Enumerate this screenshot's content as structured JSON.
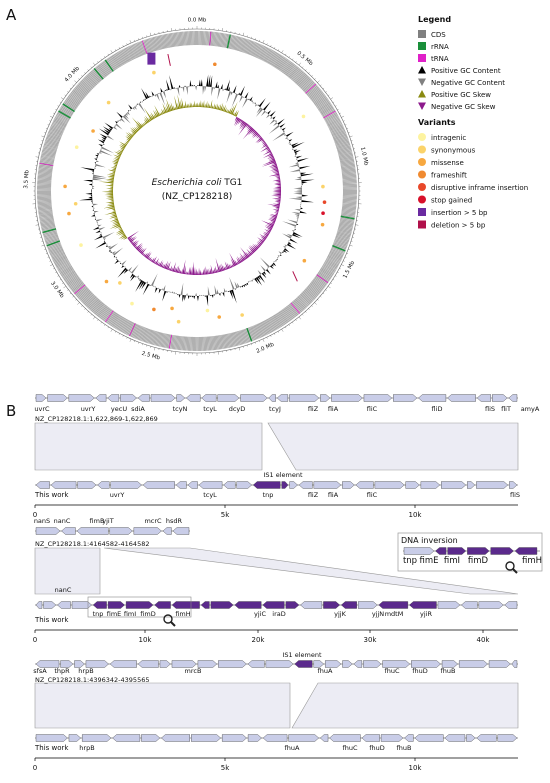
{
  "panel_a": {
    "label": "A",
    "genome_ticks": [
      "0.0 Mb",
      "0.5 Mb",
      "1.0 Mb",
      "1.5 Mb",
      "2.0 Mb",
      "2.5 Mb",
      "3.0 Mb",
      "3.5 Mb",
      "4.0 Mb"
    ],
    "center_title": {
      "species": "Escherichia coli",
      "strain": "TG1",
      "accession": "(NZ_CP128218)"
    },
    "legend": {
      "title": "Legend",
      "items": [
        {
          "label": "CDS",
          "color": "#808080"
        },
        {
          "label": "rRNA",
          "color": "#1a8f3a"
        },
        {
          "label": "tRNA",
          "color": "#e020c8"
        },
        {
          "label": "Positive GC Content",
          "color": "#000000"
        },
        {
          "label": "Negative GC Content",
          "color": "#808080"
        },
        {
          "label": "Positive GC Skew",
          "color": "#8a8a10"
        },
        {
          "label": "Negative GC Skew",
          "color": "#8c1a8c"
        }
      ]
    },
    "variants": {
      "title": "Variants",
      "items": [
        {
          "label": "intragenic",
          "color": "#fdf3a0"
        },
        {
          "label": "synonymous",
          "color": "#fbd36a"
        },
        {
          "label": "missense",
          "color": "#f7a840"
        },
        {
          "label": "frameshift",
          "color": "#f08a30"
        },
        {
          "label": "disruptive inframe insertion",
          "color": "#e8482a"
        },
        {
          "label": "stop gained",
          "color": "#d8102a"
        },
        {
          "label": "insertion > 5 bp",
          "color": "#6a2aa0"
        },
        {
          "label": "deletion > 5 bp",
          "color": "#b0104a"
        }
      ]
    }
  },
  "panel_b": {
    "label": "B",
    "tracks": [
      {
        "reference_genes": [
          "uvrC",
          "uvrY",
          "yecU",
          "sdiA",
          "tcyN",
          "tcyL",
          "dcyD",
          "tcyJ",
          "fliZ",
          "fliA",
          "fliC",
          "fliD",
          "fliS",
          "fliT",
          "amyA"
        ],
        "reference_label": "NZ_CP128218.1:1,622,869-1,622,869",
        "insert_label": "IS1 element",
        "work_genes": [
          "uvrY",
          "tcyL",
          "tnp",
          "fliZ",
          "fliA",
          "fliC",
          "fliS"
        ],
        "work_label": "This work",
        "axis_ticks": [
          "0",
          "5k",
          "10k"
        ]
      },
      {
        "reference_genes": [
          "nanS",
          "nanC",
          "fimB",
          "yjiT",
          "mcrC",
          "hsdR"
        ],
        "reference_label": "NZ_CP128218.1:4164582-4164582",
        "inset": {
          "title": "DNA inversion",
          "genes": [
            "tnp",
            "fimE",
            "fimI",
            "fimD",
            "fimH"
          ]
        },
        "work_genes": [
          "nanC",
          "tnp",
          "fimE",
          "fimI",
          "fimD",
          "fimH",
          "yjiC",
          "iraD",
          "yjjK",
          "yjjN",
          "mdtM",
          "yjiR"
        ],
        "work_label": "This work",
        "axis_ticks": [
          "0",
          "10k",
          "20k",
          "30k",
          "40k"
        ]
      },
      {
        "insert_label": "IS1 element",
        "reference_genes": [
          "sfsA",
          "thpR",
          "hrpB",
          "mrcB",
          "fhuA",
          "fhuC",
          "fhuD",
          "fhuB"
        ],
        "reference_label": "NZ_CP128218.1:4396342-4395565",
        "work_genes": [
          "hrpB",
          "fhuA",
          "fhuC",
          "fhuD",
          "fhuB"
        ],
        "work_label": "This work",
        "axis_ticks": [
          "0",
          "5k",
          "10k"
        ]
      }
    ]
  }
}
